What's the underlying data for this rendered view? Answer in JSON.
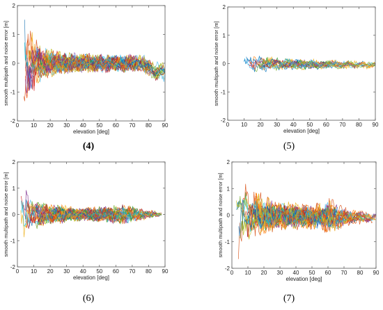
{
  "chart_data": [
    {
      "type": "line",
      "caption": "(4)",
      "xlabel": "elevation [deg]",
      "ylabel": "smooth multipath and noise error [m]",
      "xlim": [
        0,
        90
      ],
      "ylim": [
        -2,
        2
      ],
      "xticks": [
        0,
        10,
        20,
        30,
        40,
        50,
        60,
        70,
        80,
        90
      ],
      "yticks": [
        -2,
        -1,
        0,
        1,
        2
      ],
      "grid": false,
      "series_count": 60,
      "x_start": 3,
      "x_end": 90,
      "amp_by_elev": [
        [
          3,
          1.9
        ],
        [
          8,
          1.2
        ],
        [
          15,
          0.55
        ],
        [
          30,
          0.35
        ],
        [
          60,
          0.3
        ],
        [
          80,
          0.35
        ],
        [
          88,
          0.35
        ]
      ],
      "bias_by_elev": [
        [
          3,
          0
        ],
        [
          75,
          0
        ],
        [
          85,
          -0.3
        ],
        [
          90,
          -0.3
        ]
      ]
    },
    {
      "type": "line",
      "caption": "(5)",
      "xlabel": "elevation [deg]",
      "ylabel": "smooth multipath and noise error [m]",
      "xlim": [
        0,
        90
      ],
      "ylim": [
        -2,
        2
      ],
      "xticks": [
        0,
        10,
        20,
        30,
        40,
        50,
        60,
        70,
        80,
        90
      ],
      "yticks": [
        -2,
        -1,
        0,
        1,
        2
      ],
      "grid": false,
      "series_count": 20,
      "x_start": 9,
      "x_end": 90,
      "amp_by_elev": [
        [
          6,
          0.3
        ],
        [
          15,
          0.3
        ],
        [
          40,
          0.2
        ],
        [
          70,
          0.15
        ],
        [
          90,
          0.12
        ]
      ],
      "bias_by_elev": [
        [
          6,
          0
        ],
        [
          90,
          -0.05
        ]
      ]
    },
    {
      "type": "line",
      "caption": "(6)",
      "xlabel": "elevation [deg]",
      "ylabel": "smooth multipath and noise error [m]",
      "xlim": [
        0,
        90
      ],
      "ylim": [
        -2,
        2
      ],
      "xticks": [
        0,
        10,
        20,
        30,
        40,
        50,
        60,
        70,
        80,
        90
      ],
      "yticks": [
        -2,
        -1,
        0,
        1,
        2
      ],
      "grid": false,
      "series_count": 45,
      "x_start": 1,
      "x_end": 88,
      "amp_by_elev": [
        [
          1,
          1.8
        ],
        [
          5,
          1.2
        ],
        [
          10,
          0.6
        ],
        [
          20,
          0.4
        ],
        [
          40,
          0.25
        ],
        [
          60,
          0.35
        ],
        [
          65,
          0.4
        ],
        [
          88,
          0.08
        ]
      ],
      "bias_by_elev": [
        [
          1,
          0
        ],
        [
          90,
          0
        ]
      ]
    },
    {
      "type": "line",
      "caption": "(7)",
      "xlabel": "elevation [deg]",
      "ylabel": "smooth multipath and noise error [m]",
      "xlim": [
        0,
        90
      ],
      "ylim": [
        -2,
        2
      ],
      "xticks": [
        0,
        10,
        20,
        30,
        40,
        50,
        60,
        70,
        80,
        90
      ],
      "yticks": [
        -2,
        -1,
        0,
        1,
        2
      ],
      "grid": false,
      "series_count": 45,
      "x_start": 2,
      "x_end": 90,
      "amp_by_elev": [
        [
          2,
          1.9
        ],
        [
          10,
          1.0
        ],
        [
          30,
          0.55
        ],
        [
          55,
          0.5
        ],
        [
          60,
          0.7
        ],
        [
          75,
          0.3
        ],
        [
          90,
          0.2
        ]
      ],
      "bias_by_elev": [
        [
          2,
          0
        ],
        [
          90,
          -0.1
        ]
      ]
    }
  ],
  "colors": [
    "#0072BD",
    "#D95319",
    "#EDB120",
    "#7E2F8E",
    "#77AC30",
    "#4DBEEE",
    "#A2142F",
    "#1f77b4",
    "#ff7f0e",
    "#2ca02c",
    "#d62728",
    "#9467bd",
    "#17becf",
    "#bcbd22"
  ]
}
